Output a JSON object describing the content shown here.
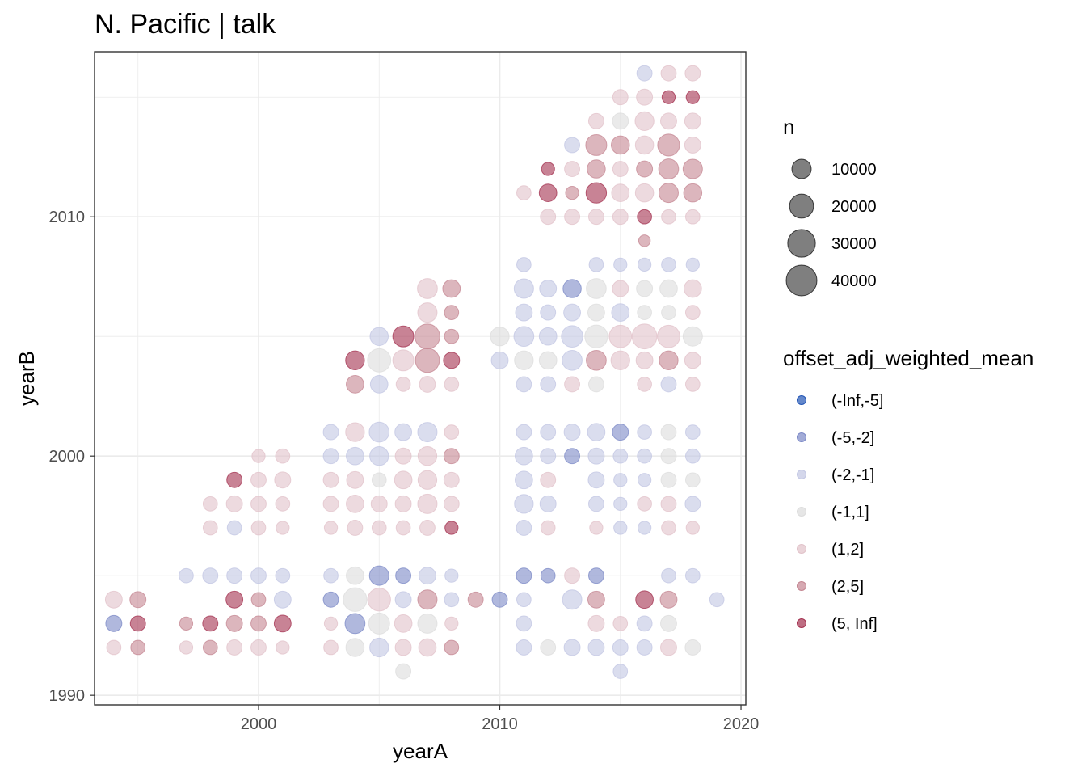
{
  "chart_data": {
    "type": "scatter",
    "title": "N. Pacific | talk",
    "xlabel": "yearA",
    "ylabel": "yearB",
    "xlim": [
      1993.2,
      2020.2
    ],
    "ylim": [
      1989.6,
      2016.9
    ],
    "x_ticks": [
      2000,
      2010,
      2020
    ],
    "y_ticks": [
      1990,
      2000,
      2010
    ],
    "grid": true,
    "legend_position": "right",
    "size_legend": {
      "title": "n",
      "entries": [
        {
          "label": "10000",
          "value": 10000
        },
        {
          "label": "20000",
          "value": 20000
        },
        {
          "label": "30000",
          "value": 30000
        },
        {
          "label": "40000",
          "value": 40000
        }
      ]
    },
    "color_legend": {
      "title": "offset_adj_weighted_mean",
      "classes": [
        {
          "label": "(-Inf,-5]",
          "color": "#2255b5"
        },
        {
          "label": "(-5,-2]",
          "color": "#7b88c6"
        },
        {
          "label": "(-2,-1]",
          "color": "#c2c6e3"
        },
        {
          "label": "(-1,1]",
          "color": "#dcdcdc"
        },
        {
          "label": "(1,2]",
          "color": "#e1c2c9"
        },
        {
          "label": "(2,5]",
          "color": "#c48591"
        },
        {
          "label": "(5, Inf]",
          "color": "#a3304f"
        }
      ]
    },
    "points": [
      [
        2016,
        2016,
        2,
        4000
      ],
      [
        2017,
        2016,
        4,
        4000
      ],
      [
        2018,
        2016,
        4,
        4000
      ],
      [
        2015,
        2015,
        4,
        4000
      ],
      [
        2016,
        2015,
        4,
        5000
      ],
      [
        2017,
        2015,
        6,
        2000
      ],
      [
        2018,
        2015,
        6,
        2000
      ],
      [
        2014,
        2014,
        4,
        4000
      ],
      [
        2015,
        2014,
        3,
        5000
      ],
      [
        2016,
        2014,
        4,
        9000
      ],
      [
        2017,
        2014,
        4,
        5000
      ],
      [
        2018,
        2014,
        4,
        5000
      ],
      [
        2013,
        2013,
        2,
        4000
      ],
      [
        2014,
        2013,
        5,
        13000
      ],
      [
        2015,
        2013,
        5,
        8000
      ],
      [
        2016,
        2013,
        4,
        8000
      ],
      [
        2017,
        2013,
        5,
        15000
      ],
      [
        2018,
        2013,
        4,
        5000
      ],
      [
        2012,
        2012,
        6,
        2000
      ],
      [
        2013,
        2012,
        4,
        4000
      ],
      [
        2014,
        2012,
        5,
        8000
      ],
      [
        2015,
        2012,
        4,
        4000
      ],
      [
        2016,
        2012,
        5,
        5000
      ],
      [
        2017,
        2012,
        5,
        11000
      ],
      [
        2018,
        2012,
        5,
        10000
      ],
      [
        2011,
        2011,
        4,
        3000
      ],
      [
        2012,
        2011,
        6,
        7000
      ],
      [
        2013,
        2011,
        5,
        2000
      ],
      [
        2014,
        2011,
        6,
        12000
      ],
      [
        2015,
        2011,
        4,
        7000
      ],
      [
        2016,
        2011,
        4,
        8000
      ],
      [
        2017,
        2011,
        5,
        10000
      ],
      [
        2018,
        2011,
        5,
        8000
      ],
      [
        2012,
        2010,
        4,
        4000
      ],
      [
        2013,
        2010,
        4,
        4000
      ],
      [
        2014,
        2010,
        4,
        4000
      ],
      [
        2015,
        2010,
        4,
        4000
      ],
      [
        2016,
        2010,
        6,
        3000
      ],
      [
        2017,
        2010,
        4,
        3000
      ],
      [
        2018,
        2010,
        4,
        3000
      ],
      [
        2016,
        2009,
        5,
        1000
      ],
      [
        2011,
        2008,
        2,
        3000
      ],
      [
        2014,
        2008,
        2,
        3000
      ],
      [
        2015,
        2008,
        2,
        2000
      ],
      [
        2016,
        2008,
        2,
        2000
      ],
      [
        2017,
        2008,
        2,
        3000
      ],
      [
        2018,
        2008,
        2,
        2000
      ],
      [
        2007,
        2007,
        4,
        11000
      ],
      [
        2008,
        2007,
        5,
        7000
      ],
      [
        2011,
        2007,
        2,
        10000
      ],
      [
        2012,
        2007,
        2,
        6000
      ],
      [
        2013,
        2007,
        1,
        8000
      ],
      [
        2014,
        2007,
        3,
        11000
      ],
      [
        2015,
        2007,
        4,
        5000
      ],
      [
        2016,
        2007,
        3,
        5000
      ],
      [
        2017,
        2007,
        3,
        7000
      ],
      [
        2018,
        2007,
        4,
        7000
      ],
      [
        2007,
        2006,
        4,
        10000
      ],
      [
        2008,
        2006,
        5,
        3000
      ],
      [
        2011,
        2006,
        2,
        6000
      ],
      [
        2012,
        2006,
        2,
        4000
      ],
      [
        2013,
        2006,
        2,
        6000
      ],
      [
        2014,
        2006,
        3,
        6000
      ],
      [
        2015,
        2006,
        2,
        7000
      ],
      [
        2016,
        2006,
        3,
        3000
      ],
      [
        2017,
        2006,
        3,
        3000
      ],
      [
        2018,
        2006,
        4,
        3000
      ],
      [
        2005,
        2005,
        2,
        8000
      ],
      [
        2006,
        2005,
        6,
        13000
      ],
      [
        2007,
        2005,
        5,
        22000
      ],
      [
        2008,
        2005,
        5,
        3000
      ],
      [
        2010,
        2005,
        3,
        9000
      ],
      [
        2011,
        2005,
        2,
        11000
      ],
      [
        2012,
        2005,
        2,
        7000
      ],
      [
        2013,
        2005,
        2,
        14000
      ],
      [
        2014,
        2005,
        3,
        17000
      ],
      [
        2015,
        2005,
        4,
        16000
      ],
      [
        2016,
        2005,
        4,
        22000
      ],
      [
        2017,
        2005,
        4,
        16000
      ],
      [
        2018,
        2005,
        3,
        10000
      ],
      [
        2004,
        2004,
        6,
        9000
      ],
      [
        2005,
        2004,
        3,
        18000
      ],
      [
        2006,
        2004,
        4,
        13000
      ],
      [
        2007,
        2004,
        5,
        20000
      ],
      [
        2008,
        2004,
        6,
        5000
      ],
      [
        2010,
        2004,
        2,
        6000
      ],
      [
        2011,
        2004,
        3,
        9000
      ],
      [
        2012,
        2004,
        3,
        7000
      ],
      [
        2013,
        2004,
        2,
        11000
      ],
      [
        2014,
        2004,
        5,
        11000
      ],
      [
        2015,
        2004,
        4,
        9000
      ],
      [
        2016,
        2004,
        4,
        6000
      ],
      [
        2017,
        2004,
        5,
        9000
      ],
      [
        2018,
        2004,
        4,
        5000
      ],
      [
        2004,
        2003,
        5,
        7000
      ],
      [
        2005,
        2003,
        2,
        7000
      ],
      [
        2006,
        2003,
        4,
        3000
      ],
      [
        2007,
        2003,
        4,
        5000
      ],
      [
        2008,
        2003,
        4,
        3000
      ],
      [
        2011,
        2003,
        2,
        4000
      ],
      [
        2012,
        2003,
        2,
        4000
      ],
      [
        2013,
        2003,
        4,
        4000
      ],
      [
        2014,
        2003,
        3,
        4000
      ],
      [
        2016,
        2003,
        4,
        3000
      ],
      [
        2017,
        2003,
        2,
        4000
      ],
      [
        2018,
        2003,
        4,
        3000
      ],
      [
        2003,
        2001,
        2,
        4000
      ],
      [
        2004,
        2001,
        4,
        9000
      ],
      [
        2005,
        2001,
        2,
        11000
      ],
      [
        2006,
        2001,
        2,
        6000
      ],
      [
        2007,
        2001,
        2,
        10000
      ],
      [
        2008,
        2001,
        4,
        3000
      ],
      [
        2011,
        2001,
        2,
        4000
      ],
      [
        2012,
        2001,
        2,
        4000
      ],
      [
        2013,
        2001,
        2,
        5000
      ],
      [
        2014,
        2001,
        2,
        7000
      ],
      [
        2015,
        2001,
        1,
        5000
      ],
      [
        2016,
        2001,
        2,
        3000
      ],
      [
        2017,
        2001,
        3,
        4000
      ],
      [
        2018,
        2001,
        2,
        3000
      ],
      [
        2000,
        2000,
        4,
        2000
      ],
      [
        2001,
        2000,
        4,
        3000
      ],
      [
        2003,
        2000,
        2,
        4000
      ],
      [
        2004,
        2000,
        2,
        7000
      ],
      [
        2005,
        2000,
        2,
        9000
      ],
      [
        2006,
        2000,
        4,
        5000
      ],
      [
        2007,
        2000,
        4,
        9000
      ],
      [
        2008,
        2000,
        5,
        4000
      ],
      [
        2011,
        2000,
        2,
        7000
      ],
      [
        2012,
        2000,
        2,
        4000
      ],
      [
        2013,
        2000,
        1,
        4000
      ],
      [
        2014,
        2000,
        2,
        5000
      ],
      [
        2015,
        2000,
        2,
        3000
      ],
      [
        2016,
        2000,
        2,
        3000
      ],
      [
        2017,
        2000,
        3,
        4000
      ],
      [
        2018,
        2000,
        2,
        3000
      ],
      [
        1999,
        1999,
        6,
        4000
      ],
      [
        2000,
        1999,
        4,
        4000
      ],
      [
        2001,
        1999,
        4,
        5000
      ],
      [
        2003,
        1999,
        4,
        4000
      ],
      [
        2004,
        1999,
        4,
        6000
      ],
      [
        2005,
        1999,
        3,
        3000
      ],
      [
        2006,
        1999,
        4,
        7000
      ],
      [
        2007,
        1999,
        4,
        9000
      ],
      [
        2008,
        1999,
        4,
        4000
      ],
      [
        2011,
        1999,
        2,
        7000
      ],
      [
        2012,
        1999,
        4,
        4000
      ],
      [
        2014,
        1999,
        2,
        5000
      ],
      [
        2015,
        1999,
        2,
        2000
      ],
      [
        2016,
        1999,
        2,
        2000
      ],
      [
        2017,
        1999,
        3,
        4000
      ],
      [
        2018,
        1999,
        3,
        3000
      ],
      [
        1998,
        1998,
        4,
        3000
      ],
      [
        1999,
        1998,
        4,
        5000
      ],
      [
        2000,
        1998,
        4,
        4000
      ],
      [
        2001,
        1998,
        4,
        3000
      ],
      [
        2003,
        1998,
        4,
        4000
      ],
      [
        2004,
        1998,
        4,
        7000
      ],
      [
        2005,
        1998,
        4,
        5000
      ],
      [
        2006,
        1998,
        4,
        5000
      ],
      [
        2007,
        1998,
        4,
        10000
      ],
      [
        2008,
        1998,
        4,
        4000
      ],
      [
        2011,
        1998,
        2,
        9000
      ],
      [
        2012,
        1998,
        2,
        5000
      ],
      [
        2014,
        1998,
        2,
        4000
      ],
      [
        2015,
        1998,
        2,
        2000
      ],
      [
        2016,
        1998,
        4,
        3000
      ],
      [
        2017,
        1998,
        4,
        4000
      ],
      [
        2018,
        1998,
        2,
        4000
      ],
      [
        1998,
        1997,
        4,
        3000
      ],
      [
        1999,
        1997,
        2,
        3000
      ],
      [
        2000,
        1997,
        4,
        3000
      ],
      [
        2001,
        1997,
        4,
        2000
      ],
      [
        2003,
        1997,
        4,
        2000
      ],
      [
        2004,
        1997,
        4,
        4000
      ],
      [
        2005,
        1997,
        4,
        3000
      ],
      [
        2006,
        1997,
        4,
        3000
      ],
      [
        2007,
        1997,
        4,
        4000
      ],
      [
        2008,
        1997,
        6,
        2000
      ],
      [
        2011,
        1997,
        2,
        4000
      ],
      [
        2012,
        1997,
        4,
        3000
      ],
      [
        2014,
        1997,
        4,
        2000
      ],
      [
        2015,
        1997,
        2,
        2000
      ],
      [
        2016,
        1997,
        2,
        2000
      ],
      [
        2017,
        1997,
        4,
        3000
      ],
      [
        2018,
        1997,
        4,
        2000
      ],
      [
        1997,
        1995,
        2,
        3000
      ],
      [
        1998,
        1995,
        2,
        4000
      ],
      [
        1999,
        1995,
        2,
        4000
      ],
      [
        2000,
        1995,
        2,
        4000
      ],
      [
        2001,
        1995,
        2,
        3000
      ],
      [
        2003,
        1995,
        2,
        3000
      ],
      [
        2004,
        1995,
        3,
        7000
      ],
      [
        2005,
        1995,
        1,
        10000
      ],
      [
        2006,
        1995,
        1,
        4000
      ],
      [
        2007,
        1995,
        2,
        6000
      ],
      [
        2008,
        1995,
        2,
        2000
      ],
      [
        2011,
        1995,
        1,
        4000
      ],
      [
        2012,
        1995,
        1,
        3000
      ],
      [
        2013,
        1995,
        4,
        4000
      ],
      [
        2014,
        1995,
        1,
        4000
      ],
      [
        2017,
        1995,
        2,
        3000
      ],
      [
        2018,
        1995,
        2,
        3000
      ],
      [
        1994,
        1994,
        4,
        6000
      ],
      [
        1995,
        1994,
        5,
        5000
      ],
      [
        1999,
        1994,
        6,
        6000
      ],
      [
        2000,
        1994,
        5,
        3000
      ],
      [
        2001,
        1994,
        2,
        6000
      ],
      [
        2003,
        1994,
        1,
        4000
      ],
      [
        2004,
        1994,
        3,
        19000
      ],
      [
        2005,
        1994,
        4,
        17000
      ],
      [
        2006,
        1994,
        2,
        5000
      ],
      [
        2007,
        1994,
        5,
        10000
      ],
      [
        2008,
        1994,
        2,
        3000
      ],
      [
        2009,
        1994,
        5,
        4000
      ],
      [
        2010,
        1994,
        1,
        4000
      ],
      [
        2011,
        1994,
        2,
        3000
      ],
      [
        2013,
        1994,
        2,
        10000
      ],
      [
        2014,
        1994,
        5,
        6000
      ],
      [
        2016,
        1994,
        6,
        7000
      ],
      [
        2017,
        1994,
        5,
        6000
      ],
      [
        2019,
        1994,
        2,
        3000
      ],
      [
        1994,
        1993,
        1,
        5000
      ],
      [
        1995,
        1993,
        6,
        4000
      ],
      [
        1997,
        1993,
        5,
        2000
      ],
      [
        1998,
        1993,
        6,
        4000
      ],
      [
        1999,
        1993,
        5,
        5000
      ],
      [
        2000,
        1993,
        5,
        4000
      ],
      [
        2001,
        1993,
        6,
        6000
      ],
      [
        2003,
        1993,
        4,
        2000
      ],
      [
        2004,
        1993,
        1,
        11000
      ],
      [
        2005,
        1993,
        3,
        13000
      ],
      [
        2006,
        1993,
        4,
        7000
      ],
      [
        2007,
        1993,
        3,
        10000
      ],
      [
        2008,
        1993,
        4,
        2000
      ],
      [
        2011,
        1993,
        2,
        4000
      ],
      [
        2014,
        1993,
        4,
        5000
      ],
      [
        2015,
        1993,
        4,
        3000
      ],
      [
        2016,
        1993,
        2,
        4000
      ],
      [
        2017,
        1993,
        3,
        5000
      ],
      [
        1994,
        1992,
        4,
        3000
      ],
      [
        1995,
        1992,
        5,
        3000
      ],
      [
        1997,
        1992,
        4,
        2000
      ],
      [
        1998,
        1992,
        5,
        3000
      ],
      [
        1999,
        1992,
        4,
        4000
      ],
      [
        2000,
        1992,
        4,
        4000
      ],
      [
        2001,
        1992,
        4,
        2000
      ],
      [
        2003,
        1992,
        4,
        3000
      ],
      [
        2004,
        1992,
        3,
        8000
      ],
      [
        2005,
        1992,
        2,
        9000
      ],
      [
        2006,
        1992,
        4,
        5000
      ],
      [
        2007,
        1992,
        4,
        7000
      ],
      [
        2008,
        1992,
        5,
        3000
      ],
      [
        2011,
        1992,
        2,
        4000
      ],
      [
        2012,
        1992,
        3,
        4000
      ],
      [
        2013,
        1992,
        2,
        5000
      ],
      [
        2014,
        1992,
        2,
        5000
      ],
      [
        2015,
        1992,
        2,
        4000
      ],
      [
        2016,
        1992,
        2,
        4000
      ],
      [
        2017,
        1992,
        4,
        5000
      ],
      [
        2018,
        1992,
        3,
        4000
      ],
      [
        2006,
        1991,
        3,
        4000
      ],
      [
        2015,
        1991,
        2,
        3000
      ]
    ]
  }
}
